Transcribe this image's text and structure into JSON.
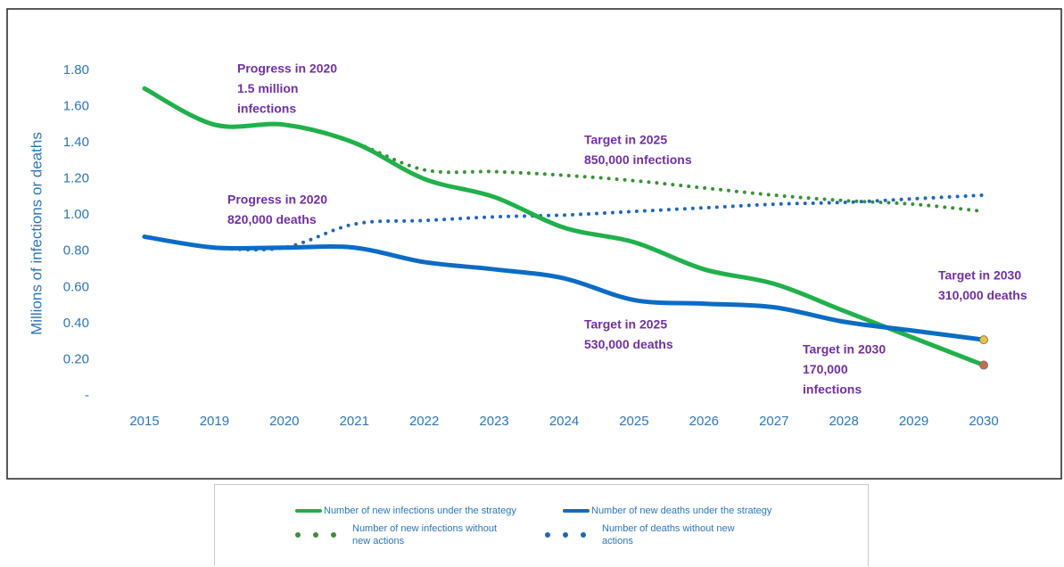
{
  "chart_data": {
    "type": "line",
    "y_label": "Millions of infections or deaths",
    "categories": [
      "2015",
      "2019",
      "2020",
      "2021",
      "2022",
      "2023",
      "2024",
      "2025",
      "2026",
      "2027",
      "2028",
      "2029",
      "2030"
    ],
    "series": [
      {
        "name": "Number of new infections under the strategy",
        "color": "#21b04b",
        "dash": "solid",
        "values": [
          1.7,
          1.5,
          1.5,
          1.4,
          1.2,
          1.1,
          0.93,
          0.85,
          0.7,
          0.62,
          0.47,
          0.32,
          0.17
        ]
      },
      {
        "name": "Number of new deaths under the strategy",
        "color": "#0c6cc4",
        "dash": "solid",
        "values": [
          0.88,
          0.82,
          0.82,
          0.82,
          0.74,
          0.7,
          0.65,
          0.53,
          0.51,
          0.49,
          0.41,
          0.36,
          0.31
        ]
      },
      {
        "name": "Number of new infections without new actions",
        "color": "#3a8f3a",
        "dash": "dotted",
        "values": [
          1.7,
          1.5,
          1.5,
          1.4,
          1.25,
          1.24,
          1.22,
          1.19,
          1.15,
          1.11,
          1.08,
          1.06,
          1.02
        ]
      },
      {
        "name": "Number of deaths without new actions",
        "color": "#1f66b8",
        "dash": "dotted",
        "values": [
          0.88,
          0.82,
          0.82,
          0.95,
          0.97,
          0.99,
          1.0,
          1.02,
          1.04,
          1.06,
          1.07,
          1.09,
          1.11
        ]
      }
    ],
    "ylim": [
      0,
      1.8
    ],
    "yticks": [
      {
        "value": 0,
        "label": "-"
      },
      {
        "value": 0.2,
        "label": "0.20"
      },
      {
        "value": 0.4,
        "label": "0.40"
      },
      {
        "value": 0.6,
        "label": "0.60"
      },
      {
        "value": 0.8,
        "label": "0.80"
      },
      {
        "value": 1.0,
        "label": "1.00"
      },
      {
        "value": 1.2,
        "label": "1.20"
      },
      {
        "value": 1.4,
        "label": "1.40"
      },
      {
        "value": 1.6,
        "label": "1.60"
      },
      {
        "value": 1.8,
        "label": "1.80"
      }
    ],
    "grid": false,
    "annotations": [
      {
        "text": [
          "Progress in 2020",
          "1.5 million",
          "infections"
        ]
      },
      {
        "text": [
          "Target in 2025",
          "850,000 infections"
        ]
      },
      {
        "text": [
          "Progress in 2020",
          "820,000 deaths"
        ]
      },
      {
        "text": [
          "Target in 2025",
          "530,000 deaths"
        ]
      },
      {
        "text": [
          "Target in 2030",
          "170,000",
          "infections"
        ]
      },
      {
        "text": [
          "Target in 2030",
          "310,000 deaths"
        ]
      }
    ]
  }
}
